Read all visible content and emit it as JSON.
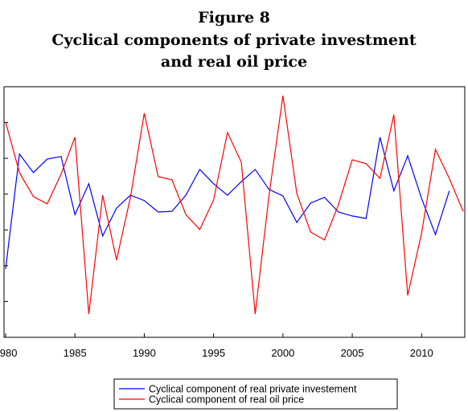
{
  "chart_data": {
    "type": "line",
    "title": "Figure 8",
    "subtitle": [
      "Cyclical components of private investment",
      "and real oil price"
    ],
    "x": [
      1980,
      1981,
      1982,
      1983,
      1984,
      1985,
      1986,
      1987,
      1988,
      1989,
      1990,
      1991,
      1992,
      1993,
      1994,
      1995,
      1996,
      1997,
      1998,
      1999,
      2000,
      2001,
      2002,
      2003,
      2004,
      2005,
      2006,
      2007,
      2008,
      2009,
      2010,
      2011,
      2012,
      2013
    ],
    "series": [
      {
        "name": "Cyclical component of real private investement",
        "color": "#0000ff",
        "values": [
          -2.09,
          1.12,
          0.6,
          0.98,
          1.05,
          -0.57,
          0.29,
          -1.17,
          -0.39,
          -0.03,
          -0.18,
          -0.5,
          -0.48,
          -0.03,
          0.69,
          0.29,
          -0.03,
          0.35,
          0.69,
          0.13,
          -0.05,
          -0.79,
          -0.25,
          -0.09,
          -0.5,
          -0.61,
          -0.68,
          1.59,
          0.09,
          1.07,
          -0.12,
          -1.13,
          0.09,
          null
        ]
      },
      {
        "name": "Cyclical component of real oil price",
        "color": "#ff0000",
        "values": [
          2.01,
          0.6,
          -0.07,
          -0.27,
          0.56,
          1.59,
          -3.35,
          -0.03,
          -1.84,
          -0.09,
          2.26,
          0.49,
          0.4,
          -0.57,
          -0.99,
          -0.16,
          1.72,
          0.89,
          -3.35,
          -0.03,
          2.75,
          0.02,
          -1.06,
          -1.28,
          -0.3,
          0.96,
          0.85,
          0.44,
          2.22,
          -2.83,
          -1.09,
          1.25,
          0.44,
          -0.48
        ]
      }
    ],
    "xlim": [
      1980,
      2013
    ],
    "xticks": [
      1980,
      1985,
      1990,
      1995,
      2000,
      2005,
      2010
    ],
    "ylim": [
      -4,
      3
    ],
    "yticks": [
      -4,
      -3,
      -2,
      -1,
      0,
      1,
      2,
      3
    ],
    "grid": false,
    "legend": "bottom"
  }
}
